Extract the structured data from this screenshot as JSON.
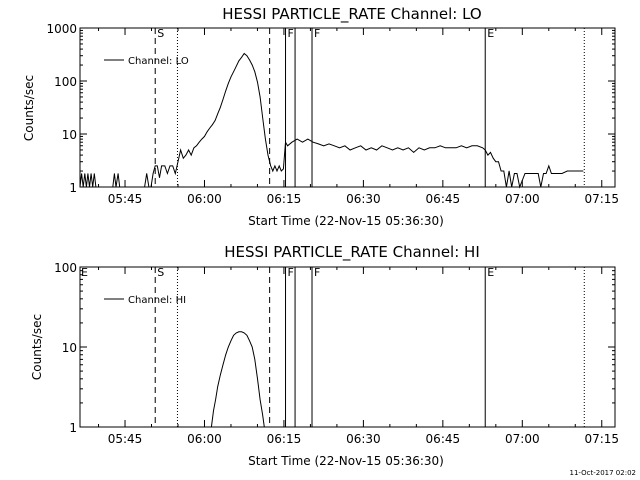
{
  "footer_timestamp": "11-Oct-2017 02:02",
  "chart_data": [
    {
      "type": "line",
      "title": "HESSI PARTICLE_RATE Channel: LO",
      "xlabel": "Start Time (22-Nov-15 05:36:30)",
      "ylabel": "Counts/sec",
      "ylog": true,
      "ylim": [
        1,
        1000
      ],
      "xlim_minutes": [
        0,
        101
      ],
      "x_ticks": [
        {
          "minute": 8.5,
          "label": "05:45"
        },
        {
          "minute": 23.5,
          "label": "06:00"
        },
        {
          "minute": 38.5,
          "label": "06:15"
        },
        {
          "minute": 53.5,
          "label": "06:30"
        },
        {
          "minute": 68.5,
          "label": "06:45"
        },
        {
          "minute": 83.5,
          "label": "07:00"
        },
        {
          "minute": 98.5,
          "label": "07:15"
        }
      ],
      "y_ticks": [
        {
          "value": 1,
          "label": "1"
        },
        {
          "value": 10,
          "label": "10"
        },
        {
          "value": 100,
          "label": "100"
        },
        {
          "value": 1000,
          "label": "1000"
        }
      ],
      "legend": {
        "entries": [
          "Channel: LO"
        ],
        "position": "top-left"
      },
      "markers": [
        {
          "minute": 14.2,
          "style": "dashed",
          "label": "S"
        },
        {
          "minute": 18.4,
          "style": "dotted",
          "label": ""
        },
        {
          "minute": 35.8,
          "style": "dashed",
          "label": ""
        },
        {
          "minute": 38.8,
          "style": "solid",
          "label": "F"
        },
        {
          "minute": 40.6,
          "style": "solid",
          "label": ""
        },
        {
          "minute": 43.8,
          "style": "solid",
          "label": "F"
        },
        {
          "minute": 76.5,
          "style": "solid",
          "label": "E"
        },
        {
          "minute": 95.2,
          "style": "dotted",
          "label": ""
        }
      ],
      "series": [
        {
          "name": "Channel: LO",
          "points": [
            [
              0.0,
              1
            ],
            [
              0.3,
              1.8
            ],
            [
              0.6,
              1
            ],
            [
              0.9,
              1.8
            ],
            [
              1.2,
              1
            ],
            [
              1.5,
              1.8
            ],
            [
              1.8,
              1
            ],
            [
              2.1,
              1.8
            ],
            [
              2.4,
              1
            ],
            [
              2.7,
              1.8
            ],
            [
              3.0,
              1
            ],
            [
              3.3,
              1
            ],
            [
              6.2,
              1
            ],
            [
              6.5,
              1.8
            ],
            [
              6.8,
              1
            ],
            [
              7.2,
              1.8
            ],
            [
              7.5,
              1
            ],
            [
              8.0,
              1
            ],
            [
              12.2,
              1
            ],
            [
              12.6,
              1.8
            ],
            [
              13.0,
              1
            ],
            [
              13.4,
              1
            ],
            [
              13.8,
              1.8
            ],
            [
              14.2,
              2.5
            ],
            [
              14.6,
              2.5
            ],
            [
              15.0,
              1.5
            ],
            [
              15.4,
              2.5
            ],
            [
              16.0,
              2.5
            ],
            [
              16.5,
              1.8
            ],
            [
              17.0,
              2.5
            ],
            [
              17.5,
              2.5
            ],
            [
              18.0,
              1.8
            ],
            [
              18.5,
              3
            ],
            [
              19.0,
              5
            ],
            [
              19.5,
              3.5
            ],
            [
              20.0,
              4
            ],
            [
              20.5,
              5
            ],
            [
              21.0,
              4
            ],
            [
              21.5,
              5.5
            ],
            [
              22.0,
              6
            ],
            [
              22.5,
              7
            ],
            [
              23.0,
              8
            ],
            [
              23.5,
              9
            ],
            [
              24.0,
              11
            ],
            [
              24.5,
              13
            ],
            [
              25.0,
              15
            ],
            [
              25.5,
              18
            ],
            [
              26.0,
              24
            ],
            [
              26.5,
              32
            ],
            [
              27.0,
              45
            ],
            [
              27.5,
              65
            ],
            [
              28.0,
              90
            ],
            [
              28.5,
              120
            ],
            [
              29.0,
              150
            ],
            [
              29.5,
              190
            ],
            [
              30.0,
              240
            ],
            [
              30.5,
              280
            ],
            [
              31.0,
              330
            ],
            [
              31.5,
              300
            ],
            [
              32.0,
              250
            ],
            [
              32.5,
              200
            ],
            [
              33.0,
              150
            ],
            [
              33.5,
              95
            ],
            [
              34.0,
              50
            ],
            [
              34.5,
              20
            ],
            [
              35.0,
              8
            ],
            [
              35.5,
              4
            ],
            [
              36.0,
              2.5
            ],
            [
              36.4,
              2
            ],
            [
              36.8,
              2.5
            ],
            [
              37.2,
              2
            ],
            [
              37.6,
              2.5
            ],
            [
              38.0,
              2
            ],
            [
              38.4,
              2.2
            ],
            [
              38.8,
              7
            ],
            [
              39.2,
              6
            ],
            [
              40.0,
              7
            ],
            [
              41.0,
              8
            ],
            [
              42.0,
              7
            ],
            [
              43.0,
              8
            ],
            [
              44.0,
              7
            ],
            [
              45.0,
              6.5
            ],
            [
              46.0,
              6
            ],
            [
              47.0,
              6.5
            ],
            [
              48.0,
              6
            ],
            [
              49.0,
              5.5
            ],
            [
              50.0,
              6
            ],
            [
              51.0,
              5
            ],
            [
              52.0,
              5.5
            ],
            [
              53.0,
              6
            ],
            [
              54.0,
              5
            ],
            [
              55.0,
              5.5
            ],
            [
              56.0,
              5
            ],
            [
              57.0,
              6
            ],
            [
              58.0,
              5.5
            ],
            [
              59.0,
              5
            ],
            [
              60.0,
              5.5
            ],
            [
              61.0,
              5
            ],
            [
              62.0,
              5.5
            ],
            [
              63.0,
              4.5
            ],
            [
              64.0,
              5.5
            ],
            [
              65.0,
              5
            ],
            [
              66.0,
              5.5
            ],
            [
              67.0,
              5.5
            ],
            [
              68.0,
              6
            ],
            [
              69.0,
              5.5
            ],
            [
              70.0,
              5.5
            ],
            [
              71.0,
              5.5
            ],
            [
              72.0,
              6
            ],
            [
              73.0,
              5.5
            ],
            [
              74.0,
              6
            ],
            [
              75.0,
              6
            ],
            [
              76.0,
              5.5
            ],
            [
              76.5,
              5
            ],
            [
              77.0,
              4
            ],
            [
              77.5,
              4.5
            ],
            [
              78.0,
              3.5
            ],
            [
              78.5,
              3
            ],
            [
              79.0,
              3
            ],
            [
              79.5,
              2
            ],
            [
              80.0,
              2
            ],
            [
              80.5,
              1
            ],
            [
              81.0,
              2
            ],
            [
              81.5,
              1
            ],
            [
              82.0,
              1.8
            ],
            [
              82.5,
              1.8
            ],
            [
              83.0,
              1
            ],
            [
              84.0,
              1.8
            ],
            [
              85.0,
              1.8
            ],
            [
              86.0,
              1.8
            ],
            [
              86.5,
              1.8
            ],
            [
              87.0,
              1
            ],
            [
              87.5,
              1.8
            ],
            [
              88.0,
              1.8
            ],
            [
              88.5,
              2.5
            ],
            [
              89.0,
              1.8
            ],
            [
              90.0,
              1.8
            ],
            [
              91.0,
              1.8
            ],
            [
              92.0,
              2
            ],
            [
              93.0,
              2
            ],
            [
              94.0,
              2
            ],
            [
              95.0,
              2
            ]
          ]
        }
      ]
    },
    {
      "type": "line",
      "title": "HESSI PARTICLE_RATE Channel: HI",
      "xlabel": "Start Time (22-Nov-15 05:36:30)",
      "ylabel": "Counts/sec",
      "ylog": true,
      "ylim": [
        1,
        100
      ],
      "xlim_minutes": [
        0,
        101
      ],
      "x_ticks": [
        {
          "minute": 8.5,
          "label": "05:45"
        },
        {
          "minute": 23.5,
          "label": "06:00"
        },
        {
          "minute": 38.5,
          "label": "06:15"
        },
        {
          "minute": 53.5,
          "label": "06:30"
        },
        {
          "minute": 68.5,
          "label": "06:45"
        },
        {
          "minute": 83.5,
          "label": "07:00"
        },
        {
          "minute": 98.5,
          "label": "07:15"
        }
      ],
      "y_ticks": [
        {
          "value": 1,
          "label": "1"
        },
        {
          "value": 10,
          "label": "10"
        },
        {
          "value": 100,
          "label": "100"
        }
      ],
      "legend": {
        "entries": [
          "Channel: HI"
        ],
        "position": "top-left"
      },
      "corner_label": "E",
      "markers": [
        {
          "minute": 14.2,
          "style": "dashed",
          "label": "S"
        },
        {
          "minute": 18.4,
          "style": "dotted",
          "label": ""
        },
        {
          "minute": 35.8,
          "style": "dashed",
          "label": ""
        },
        {
          "minute": 38.8,
          "style": "solid",
          "label": "F"
        },
        {
          "minute": 40.6,
          "style": "solid",
          "label": ""
        },
        {
          "minute": 43.8,
          "style": "solid",
          "label": "F"
        },
        {
          "minute": 76.5,
          "style": "solid",
          "label": "E"
        },
        {
          "minute": 95.2,
          "style": "dotted",
          "label": ""
        }
      ],
      "series": [
        {
          "name": "Channel: HI",
          "points": [
            [
              24.8,
              1
            ],
            [
              25.2,
              1.6
            ],
            [
              25.6,
              2.2
            ],
            [
              26.0,
              3.2
            ],
            [
              26.5,
              4.5
            ],
            [
              27.0,
              6
            ],
            [
              27.5,
              8
            ],
            [
              28.0,
              10
            ],
            [
              28.5,
              12
            ],
            [
              29.0,
              14
            ],
            [
              29.5,
              15
            ],
            [
              30.0,
              15.5
            ],
            [
              30.5,
              15.5
            ],
            [
              31.0,
              15
            ],
            [
              31.5,
              14
            ],
            [
              32.0,
              12
            ],
            [
              32.5,
              10
            ],
            [
              33.0,
              7
            ],
            [
              33.5,
              4
            ],
            [
              34.0,
              2.2
            ],
            [
              34.5,
              1.4
            ],
            [
              34.8,
              1
            ]
          ]
        }
      ]
    }
  ]
}
